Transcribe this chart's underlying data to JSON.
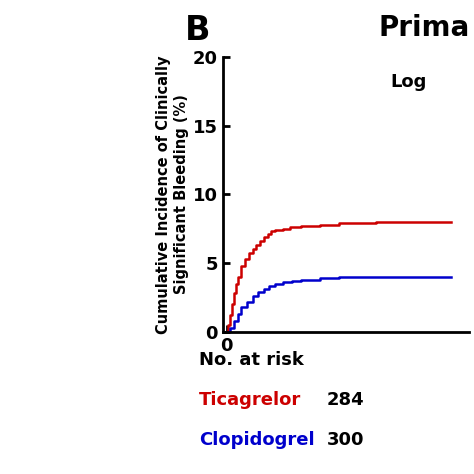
{
  "title": "Prima",
  "panel_label": "B",
  "ylabel": "Cumulative Incidence of Clinically\nSignificant Bleeding (%)",
  "annotation": "Log",
  "ylim": [
    0,
    20
  ],
  "yticks": [
    0,
    5,
    10,
    15,
    20
  ],
  "xtick_label": "0",
  "ticagrelor_color": "#cc0000",
  "clopidogrel_color": "#0000cc",
  "no_at_risk_label": "No. at risk",
  "ticagrelor_label": "Ticagrelor",
  "clopidogrel_label": "Clopidogrel",
  "ticagrelor_n": "284",
  "clopidogrel_n": "300",
  "ticagrelor_x": [
    0.0,
    0.005,
    0.01,
    0.015,
    0.02,
    0.025,
    0.03,
    0.04,
    0.05,
    0.06,
    0.07,
    0.08,
    0.09,
    0.1,
    0.11,
    0.12,
    0.13,
    0.15,
    0.17,
    0.2,
    0.25,
    0.3,
    0.35,
    0.4,
    0.5,
    0.6
  ],
  "ticagrelor_y": [
    0.0,
    0.5,
    1.2,
    2.0,
    2.8,
    3.5,
    4.0,
    4.8,
    5.3,
    5.7,
    6.0,
    6.3,
    6.6,
    6.9,
    7.1,
    7.3,
    7.4,
    7.5,
    7.6,
    7.7,
    7.8,
    7.9,
    7.95,
    8.0,
    8.0,
    8.0
  ],
  "clopidogrel_x": [
    0.0,
    0.01,
    0.02,
    0.03,
    0.04,
    0.055,
    0.07,
    0.085,
    0.1,
    0.115,
    0.13,
    0.15,
    0.175,
    0.2,
    0.25,
    0.3,
    0.35,
    0.4,
    0.5,
    0.6
  ],
  "clopidogrel_y": [
    0.0,
    0.3,
    0.8,
    1.3,
    1.8,
    2.2,
    2.6,
    2.9,
    3.1,
    3.3,
    3.5,
    3.6,
    3.7,
    3.8,
    3.9,
    4.0,
    4.0,
    4.0,
    4.0,
    4.0
  ],
  "background_color": "#ffffff",
  "title_fontsize": 20,
  "axis_fontsize": 10.5,
  "tick_fontsize": 13,
  "label_fontsize": 13,
  "panel_fontsize": 24,
  "risk_fontsize": 13
}
